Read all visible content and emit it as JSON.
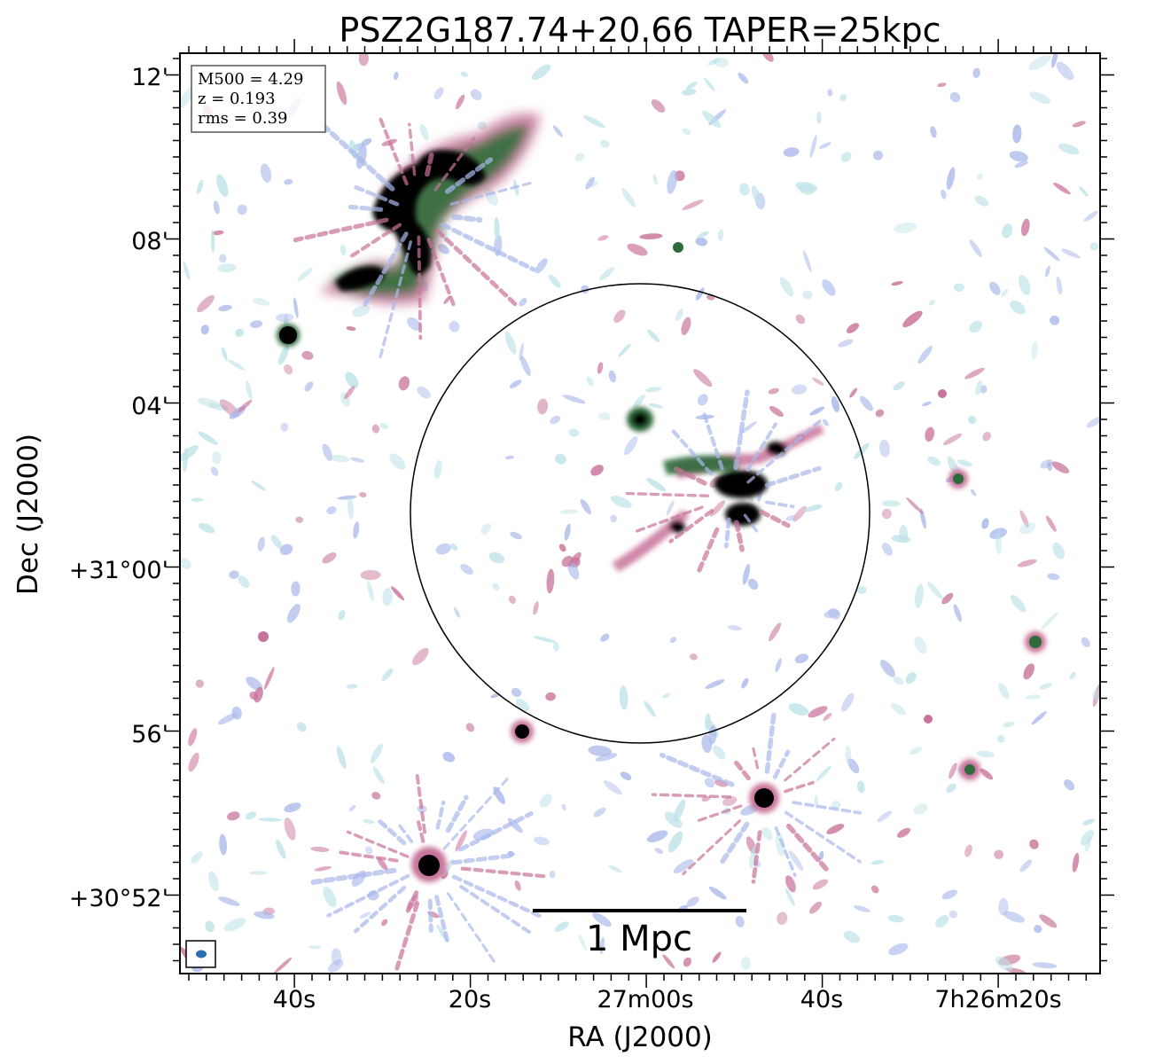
{
  "title": "PSZ2G187.74+20.66 TAPER=25kpc",
  "axes": {
    "xlabel": "RA (J2000)",
    "ylabel": "Dec (J2000)",
    "xticks": [
      "40s",
      "20s",
      "27m00s",
      "40s",
      "7h26m20s"
    ],
    "yticks": [
      "12'",
      "08'",
      "04'",
      "+31°00'",
      "56'",
      "+30°52'"
    ]
  },
  "info_box": {
    "m500": "M500 = 4.29",
    "z": "z = 0.193",
    "rms": "rms = 0.39"
  },
  "scale_bar": {
    "label": "1 Mpc"
  },
  "colors": {
    "strong_emission": "#000000",
    "medium_emission": "#2e6b3a",
    "moderate_emission": "#c8739a",
    "weak_emission": "#a9b8ea",
    "faint_emission": "#bfe3e8",
    "beam": "#2a6fb0"
  }
}
